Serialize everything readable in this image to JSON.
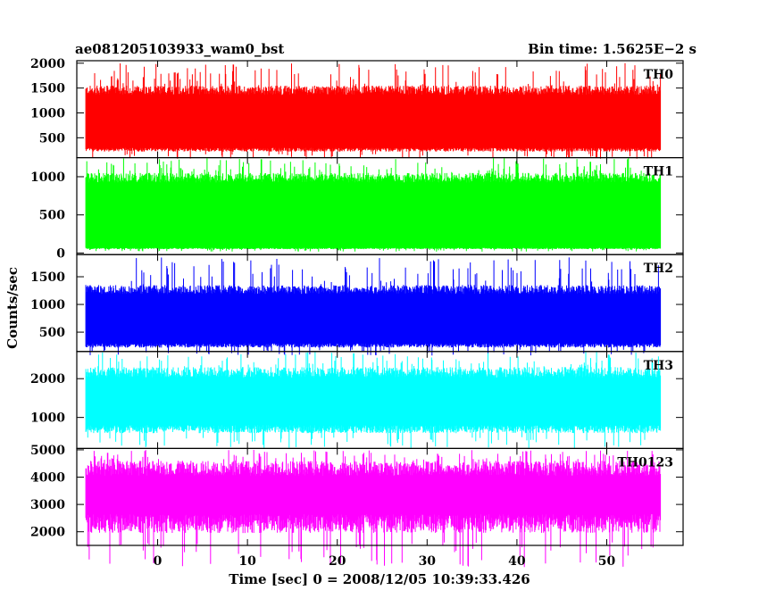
{
  "header": {
    "title": "ae081205103933_wam0_bst",
    "bin_time": "Bin time: 1.5625E−2 s"
  },
  "chart_data": {
    "type": "line",
    "xlabel": "Time [sec] 0 = 2008/12/05 10:39:33.426",
    "ylabel": "Counts/sec",
    "xlim": [
      -9,
      58.5
    ],
    "x_ticks": [
      0,
      10,
      20,
      30,
      40,
      50
    ],
    "x_start": -8,
    "x_end": 56,
    "panels": [
      {
        "name": "TH0",
        "color": "#ff0000",
        "ylim": [
          100,
          2050
        ],
        "ticks": [
          500,
          1000,
          1500,
          2000
        ],
        "baseline": 800,
        "envelope_low": 260,
        "envelope_high": 1550,
        "spike_max": 2000
      },
      {
        "name": "TH1",
        "color": "#00ff00",
        "ylim": [
          -20,
          1250
        ],
        "ticks": [
          0,
          500,
          1000
        ],
        "baseline": 550,
        "envelope_low": 60,
        "envelope_high": 1050,
        "spike_max": 1250
      },
      {
        "name": "TH2",
        "color": "#0000ff",
        "ylim": [
          150,
          1900
        ],
        "ticks": [
          500,
          1000,
          1500
        ],
        "baseline": 750,
        "envelope_low": 260,
        "envelope_high": 1350,
        "spike_max": 1850
      },
      {
        "name": "TH3",
        "color": "#00ffff",
        "ylim": [
          200,
          2700
        ],
        "ticks": [
          1000,
          2000
        ],
        "baseline": 1400,
        "envelope_low": 700,
        "envelope_high": 2300,
        "spike_max": 2700
      },
      {
        "name": "TH0123",
        "color": "#ff00ff",
        "ylim": [
          1500,
          5050
        ],
        "ticks": [
          2000,
          3000,
          4000,
          5000
        ],
        "baseline": 3300,
        "envelope_low": 2300,
        "envelope_high": 4600,
        "spike_max": 5000
      }
    ]
  }
}
